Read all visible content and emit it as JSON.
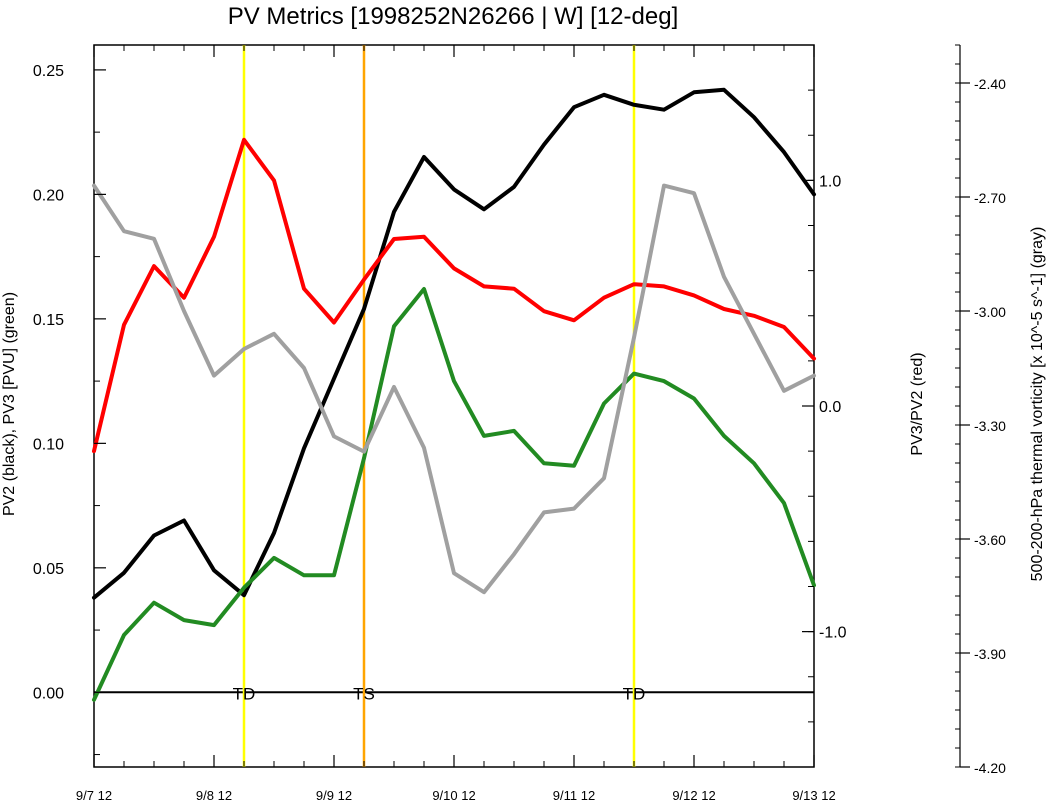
{
  "chart_data": {
    "type": "line",
    "title": "PV Metrics [1998252N26266 | W] [12-deg]",
    "xlabel": "",
    "left_ylabel": "PV2 (black), PV3 [PVU] (green)",
    "middle_ylabel": "PV3/PV2 (red)",
    "right_ylabel": "500-200-hPa thermal vorticity [x 10^-5 s^-1] (gray)",
    "x_ticks": [
      {
        "t": 0,
        "label": "9/7 12"
      },
      {
        "t": 1,
        "label": "9/8 12"
      },
      {
        "t": 2,
        "label": "9/9 12"
      },
      {
        "t": 3,
        "label": "9/10 12"
      },
      {
        "t": 4,
        "label": "9/11 12"
      },
      {
        "t": 5,
        "label": "9/12 12"
      },
      {
        "t": 6,
        "label": "9/13 12"
      }
    ],
    "xlim": [
      0,
      6
    ],
    "left_ylim": [
      -0.03,
      0.26
    ],
    "left_ticks": [
      {
        "v": 0.0,
        "label": "0.00"
      },
      {
        "v": 0.05,
        "label": "0.05"
      },
      {
        "v": 0.1,
        "label": "0.10"
      },
      {
        "v": 0.15,
        "label": "0.15"
      },
      {
        "v": 0.2,
        "label": "0.20"
      },
      {
        "v": 0.25,
        "label": "0.25"
      }
    ],
    "middle_ylim": [
      -1.6,
      1.6
    ],
    "middle_ticks": [
      {
        "v": 1.0,
        "label": "1.0"
      },
      {
        "v": 0.0,
        "label": "0.0"
      },
      {
        "v": -1.0,
        "label": "-1.0"
      }
    ],
    "right_ylim": [
      -4.2,
      -2.3
    ],
    "right_ticks": [
      {
        "v": -2.4,
        "label": "-2.40"
      },
      {
        "v": -2.7,
        "label": "-2.70"
      },
      {
        "v": -3.0,
        "label": "-3.00"
      },
      {
        "v": -3.3,
        "label": "-3.30"
      },
      {
        "v": -3.6,
        "label": "-3.60"
      },
      {
        "v": -3.9,
        "label": "-3.90"
      },
      {
        "v": -4.2,
        "label": "-4.20"
      }
    ],
    "x": [
      0,
      0.25,
      0.5,
      0.75,
      1,
      1.25,
      1.5,
      1.75,
      2,
      2.25,
      2.5,
      2.75,
      3,
      3.25,
      3.5,
      3.75,
      4,
      4.25,
      4.5,
      4.75,
      5,
      5.25,
      5.5,
      5.75,
      6
    ],
    "series": [
      {
        "name": "PV2",
        "color": "#000000",
        "axis": "left",
        "values": [
          0.038,
          0.048,
          0.063,
          0.069,
          0.049,
          0.039,
          0.064,
          0.098,
          0.126,
          0.154,
          0.193,
          0.215,
          0.202,
          0.194,
          0.203,
          0.22,
          0.235,
          0.24,
          0.236,
          0.234,
          0.241,
          0.242,
          0.231,
          0.217,
          0.2
        ]
      },
      {
        "name": "PV3",
        "color": "#228b22",
        "axis": "left",
        "values": [
          -0.003,
          0.023,
          0.036,
          0.029,
          0.027,
          0.042,
          0.054,
          0.047,
          0.047,
          0.094,
          0.147,
          0.162,
          0.125,
          0.103,
          0.105,
          0.092,
          0.091,
          0.116,
          0.128,
          0.125,
          0.118,
          0.103,
          0.092,
          0.076,
          0.043
        ]
      },
      {
        "name": "PV3/PV2",
        "color": "#ff0000",
        "axis": "middle",
        "values": [
          -0.2,
          0.36,
          0.62,
          0.48,
          0.75,
          1.18,
          1.0,
          0.52,
          0.37,
          0.56,
          0.74,
          0.75,
          0.61,
          0.53,
          0.52,
          0.42,
          0.38,
          0.48,
          0.54,
          0.53,
          0.49,
          0.43,
          0.4,
          0.35,
          0.21
        ]
      },
      {
        "name": "thermal vorticity",
        "color": "#a0a0a0",
        "axis": "right",
        "values": [
          -2.67,
          -2.79,
          -2.81,
          -3.0,
          -3.17,
          -3.1,
          -3.06,
          -3.15,
          -3.33,
          -3.37,
          -3.2,
          -3.36,
          -3.69,
          -3.74,
          -3.64,
          -3.53,
          -3.52,
          -3.44,
          -3.07,
          -2.67,
          -2.69,
          -2.91,
          -3.06,
          -3.21,
          -3.17
        ]
      }
    ],
    "markers": [
      {
        "t": 1.25,
        "color": "#ffff00",
        "label": "TD"
      },
      {
        "t": 2.25,
        "color": "#ffa500",
        "label": "TS"
      },
      {
        "t": 4.5,
        "color": "#ffff00",
        "label": "TD"
      }
    ],
    "zero_line": 0.0
  }
}
